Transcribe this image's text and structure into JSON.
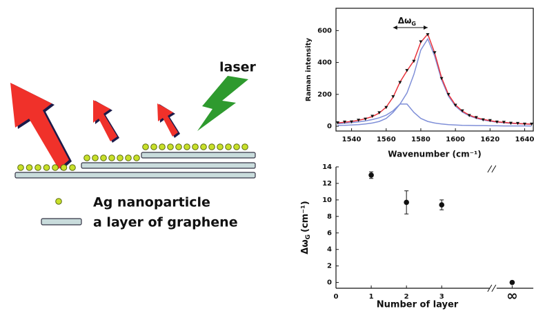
{
  "diagram": {
    "laser_label": "laser",
    "legend": [
      "Ag nanoparticle",
      "a layer of graphene"
    ]
  },
  "chart_data": [
    {
      "type": "line",
      "ylabel": "Raman intensity",
      "xlabel": "Wavenumber (cm⁻¹)",
      "annotation": "Δω",
      "annotation_sub": "G",
      "x": [
        1532,
        1536,
        1540,
        1544,
        1548,
        1552,
        1556,
        1560,
        1564,
        1568,
        1572,
        1576,
        1580,
        1584,
        1588,
        1592,
        1596,
        1600,
        1604,
        1608,
        1612,
        1616,
        1620,
        1624,
        1628,
        1632,
        1636,
        1640,
        1644
      ],
      "series": [
        {
          "style": "markers",
          "color": "#111111",
          "values": [
            22,
            27,
            28,
            38,
            45,
            63,
            85,
            118,
            186,
            275,
            350,
            408,
            530,
            575,
            462,
            300,
            200,
            132,
            97,
            68,
            55,
            41,
            36,
            27,
            25,
            19,
            18,
            14,
            14
          ]
        },
        {
          "style": "line",
          "color": "#e8313a",
          "values": [
            21,
            25,
            30,
            37,
            47,
            61,
            83,
            120,
            183,
            277,
            348,
            411,
            527,
            578,
            460,
            305,
            198,
            134,
            95,
            70,
            54,
            43,
            35,
            28,
            24,
            20,
            17,
            15,
            13
          ]
        },
        {
          "style": "line",
          "color": "#7f8fd8",
          "values": [
            16,
            19,
            23,
            27,
            33,
            42,
            53,
            70,
            97,
            139,
            209,
            325,
            478,
            548,
            440,
            291,
            188,
            126,
            89,
            65,
            50,
            39,
            32,
            26,
            22,
            18,
            16,
            14,
            12
          ]
        },
        {
          "style": "line",
          "color": "#7f8fd8",
          "values": [
            5,
            6,
            8,
            10,
            14,
            20,
            30,
            49,
            87,
            139,
            139,
            87,
            49,
            30,
            20,
            14,
            10,
            8,
            6,
            5,
            4,
            4,
            3,
            3,
            2,
            2,
            2,
            2,
            1
          ]
        }
      ],
      "xlim": [
        1531,
        1645
      ],
      "xticks": [
        1540,
        1560,
        1580,
        1600,
        1620,
        1640
      ],
      "ylim": [
        -30,
        740
      ],
      "yticks": [
        0,
        200,
        400,
        600
      ]
    },
    {
      "type": "scatter",
      "xlabel": "Number of layer",
      "ylabel": "Δω",
      "ylabel_sub": "G",
      "ylabel_unit": "(cm⁻¹)",
      "x": [
        1,
        2,
        3,
        5
      ],
      "values": [
        13.0,
        9.7,
        9.4,
        0
      ],
      "errors": [
        0.4,
        1.4,
        0.6,
        0
      ],
      "color": "#111111",
      "axis_break": true,
      "xlim": [
        0,
        5.6
      ],
      "xticks": [
        0,
        1,
        2,
        3,
        {
          "value": 5,
          "label": "∞"
        }
      ],
      "ylim": [
        -0.7,
        14
      ],
      "yticks": [
        0,
        2,
        4,
        6,
        8,
        10,
        12,
        14
      ]
    }
  ]
}
